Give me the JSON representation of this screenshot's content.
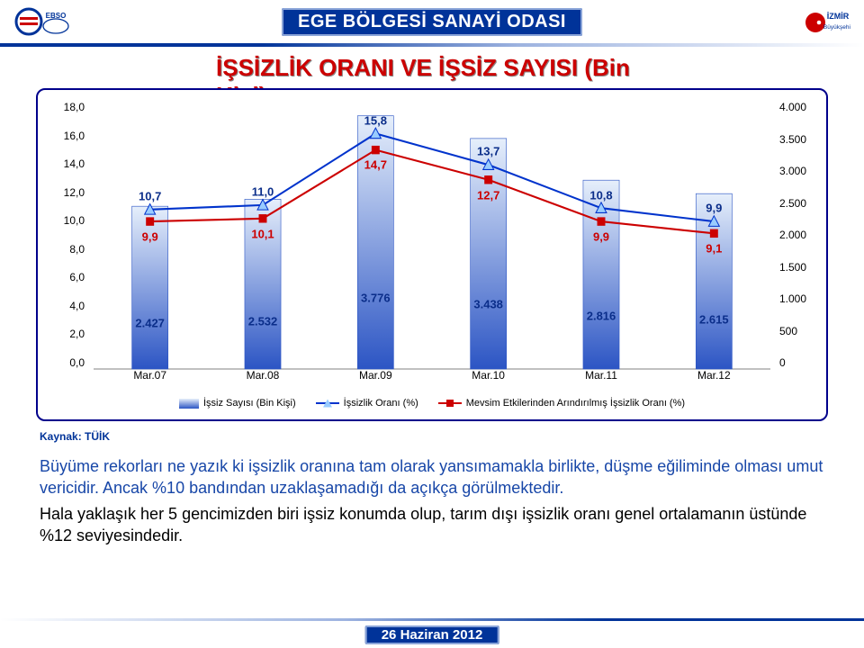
{
  "header": {
    "org_title": "EGE BÖLGESİ SANAYİ ODASI",
    "logo_left_name": "ebso-logo",
    "logo_right_name": "izmir-logo"
  },
  "title": "İŞSİZLİK ORANI VE İŞSİZ SAYISI (Bin Kişi)",
  "chart": {
    "type": "combo-bar-line-dual-axis",
    "categories": [
      "Mar.07",
      "Mar.08",
      "Mar.09",
      "Mar.10",
      "Mar.11",
      "Mar.12"
    ],
    "y_left": {
      "min": 0.0,
      "max": 18.0,
      "step": 2.0,
      "ticks": [
        "18,0",
        "16,0",
        "14,0",
        "12,0",
        "10,0",
        "8,0",
        "6,0",
        "4,0",
        "2,0",
        "0,0"
      ]
    },
    "y_right": {
      "min": 0,
      "max": 4000,
      "step": 500,
      "ticks": [
        "4.000",
        "3.500",
        "3.000",
        "2.500",
        "2.000",
        "1.500",
        "1.000",
        "500",
        "0"
      ]
    },
    "series": {
      "bars": {
        "name": "İşsiz Sayısı (Bin Kişi)",
        "axis": "right",
        "color_top": "#e6effb",
        "color_bottom": "#2c55c4",
        "values": [
          2427,
          2532,
          3776,
          3438,
          2816,
          2615
        ],
        "labels": [
          "2.427",
          "2.532",
          "3.776",
          "3.438",
          "2.816",
          "2.615"
        ],
        "label_color": "#0b2e8a",
        "bar_width": 0.32
      },
      "line1": {
        "name": "İşsizlik Oranı (%)",
        "axis": "left",
        "color": "#0033cc",
        "marker": "triangle",
        "marker_fill": "#99ccff",
        "values": [
          10.7,
          11.0,
          15.8,
          13.7,
          10.8,
          9.9
        ],
        "labels": [
          "10,7",
          "11,0",
          "15,8",
          "13,7",
          "10,8",
          "9,9"
        ],
        "label_color": "#0b2e8a",
        "line_width": 2
      },
      "line2": {
        "name": "Mevsim Etkilerinden Arındırılmış İşsizlik Oranı (%)",
        "axis": "left",
        "color": "#cc0000",
        "marker": "square",
        "marker_fill": "#cc0000",
        "values": [
          9.9,
          10.1,
          14.7,
          12.7,
          9.9,
          9.1
        ],
        "labels": [
          "9,9",
          "10,1",
          "14,7",
          "12,7",
          "9,9",
          "9,1"
        ],
        "label_color": "#cc0000",
        "line_width": 2
      }
    },
    "frame_border_color": "#00008b",
    "background_color": "#ffffff",
    "axis_line_color": "#808080",
    "label_fontsize": 12,
    "data_label_fontsize": 13
  },
  "source": "Kaynak: TÜİK",
  "body": {
    "p1": "Büyüme rekorları ne yazık ki işsizlik oranına tam olarak yansımamakla birlikte, düşme eğiliminde olması umut vericidir. Ancak %10 bandından uzaklaşamadığı da açıkça görülmektedir.",
    "p2": "Hala yaklaşık her 5 gencimizden biri işsiz konumda olup, tarım dışı işsizlik oranı genel ortalamanın üstünde %12 seviyesindedir."
  },
  "footer": {
    "date": "26 Haziran 2012"
  },
  "colors": {
    "brand_blue": "#003399",
    "title_red": "#cc0000",
    "text_blue": "#1847a8"
  }
}
